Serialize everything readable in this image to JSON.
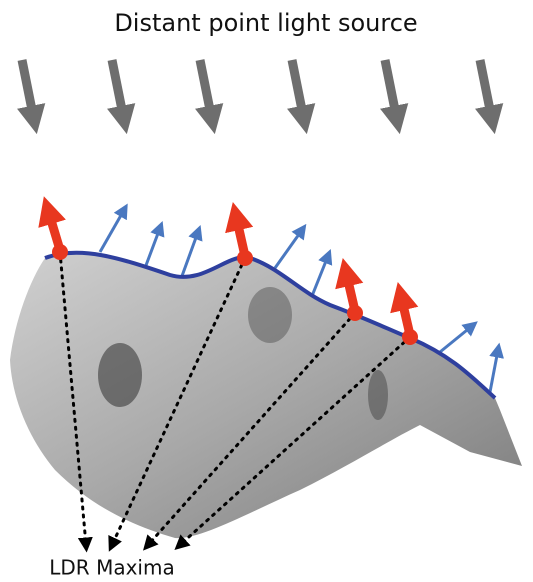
{
  "header": {
    "title": "Distant point light source"
  },
  "annotations": {
    "maxima_label": "LDR Maxima"
  }
}
